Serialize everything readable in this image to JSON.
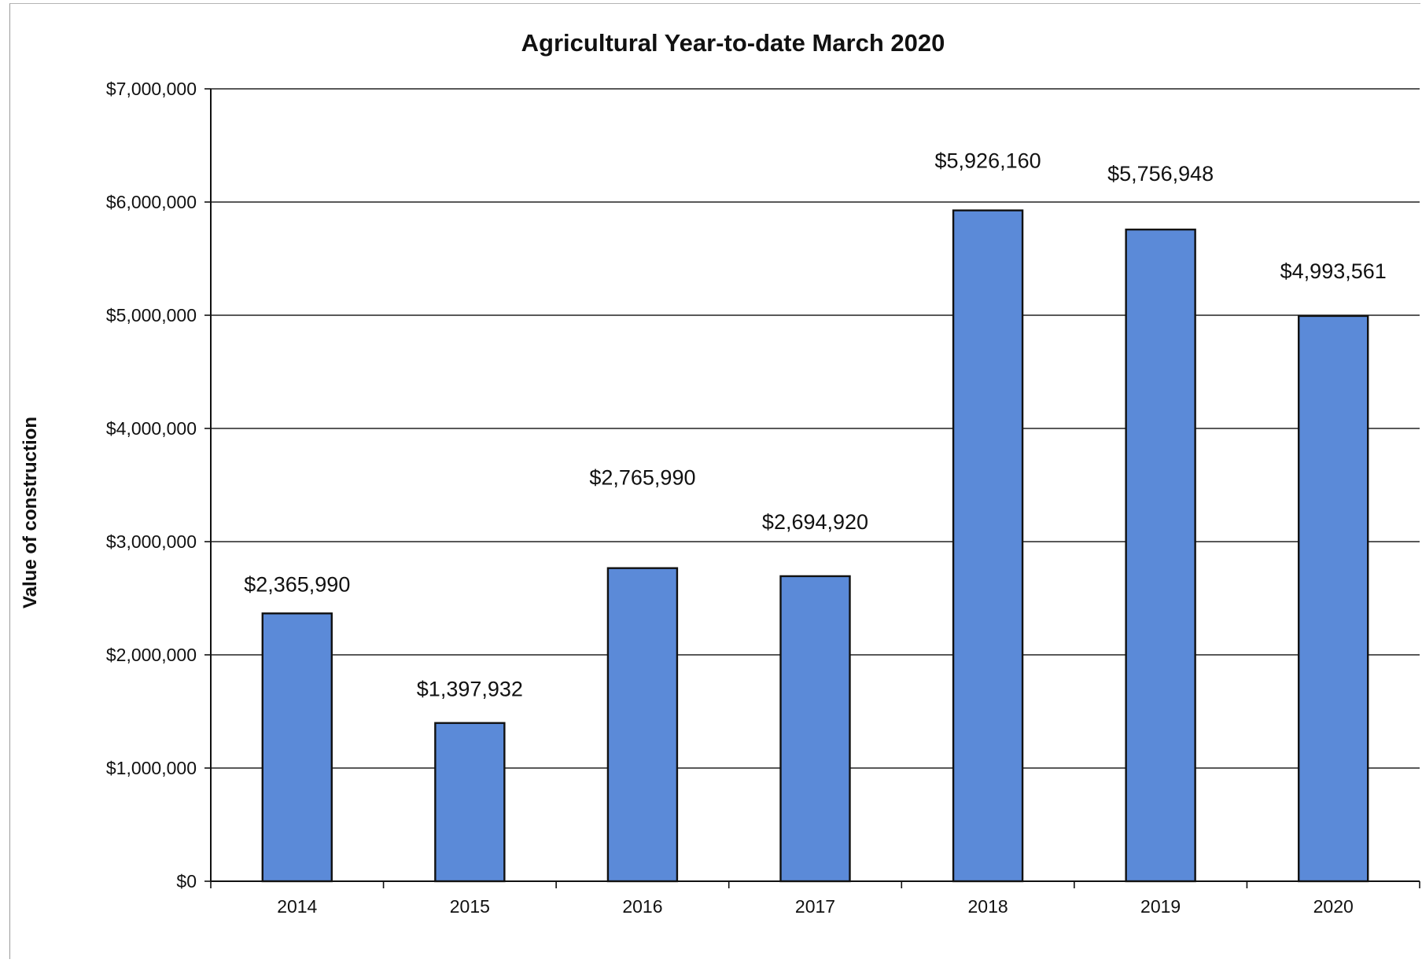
{
  "chart_data": {
    "type": "bar",
    "title": "Agricultural Year-to-date March 2020",
    "xlabel": "",
    "ylabel": "Value of construction",
    "categories": [
      "2014",
      "2015",
      "2016",
      "2017",
      "2018",
      "2019",
      "2020"
    ],
    "values": [
      2365990,
      1397932,
      2765990,
      2694920,
      5926160,
      5756948,
      4993561
    ],
    "data_labels": [
      "$2,365,990",
      "$1,397,932",
      "$2,765,990",
      "$2,694,920",
      "$5,926,160",
      "$5,756,948",
      "$4,993,561"
    ],
    "ylim": [
      0,
      7000000
    ],
    "yticks": [
      0,
      1000000,
      2000000,
      3000000,
      4000000,
      5000000,
      6000000,
      7000000
    ],
    "ytick_labels": [
      "$0",
      "$1,000,000",
      "$2,000,000",
      "$3,000,000",
      "$4,000,000",
      "$5,000,000",
      "$6,000,000",
      "$7,000,000"
    ],
    "grid": true,
    "legend": "none",
    "colors": {
      "bar_fill": "#5b8ad8",
      "bar_stroke": "#111111",
      "gridline": "#222222",
      "axis": "#111111"
    }
  }
}
